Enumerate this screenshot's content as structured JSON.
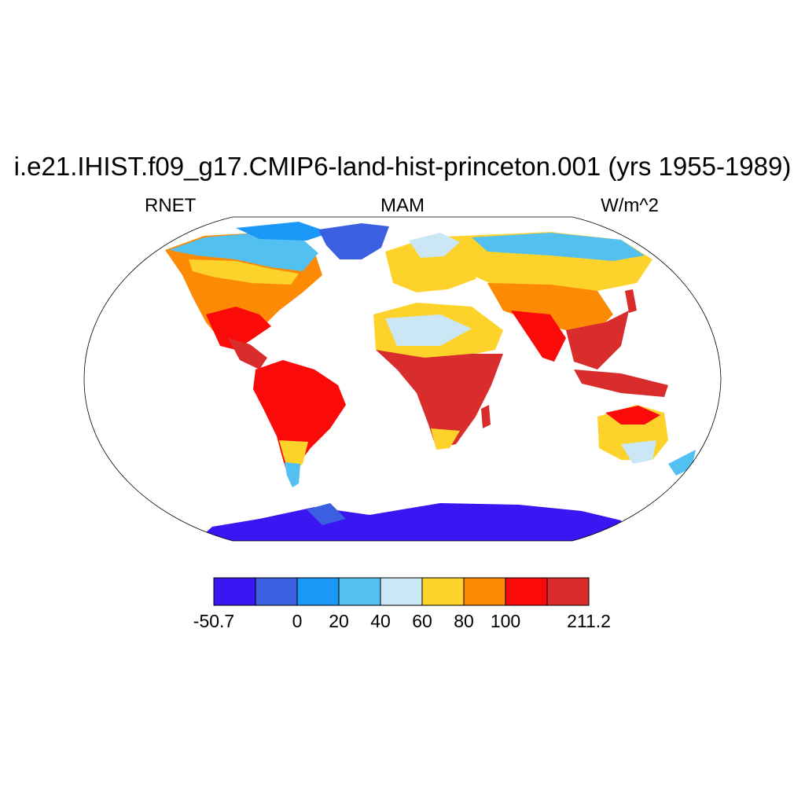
{
  "title": "i.e21.IHIST.f09_g17.CMIP6-land-hist-princeton.001 (yrs 1955-1989)",
  "subtitle_left": "RNET",
  "subtitle_center": "MAM",
  "subtitle_right": "W/m^2",
  "colorbar": {
    "colors": [
      "#3a17f2",
      "#3a5fe0",
      "#1a98f7",
      "#52c1f2",
      "#cbe6f5",
      "#fdd22a",
      "#fd8a05",
      "#fb0a0a",
      "#d92c2c"
    ],
    "labels": [
      "-50.7",
      "0",
      "20",
      "40",
      "60",
      "80",
      "100",
      "211.2"
    ]
  },
  "map": {
    "projection": "Robinson",
    "variable": "RNET",
    "season": "MAM",
    "units": "W/m^2"
  }
}
